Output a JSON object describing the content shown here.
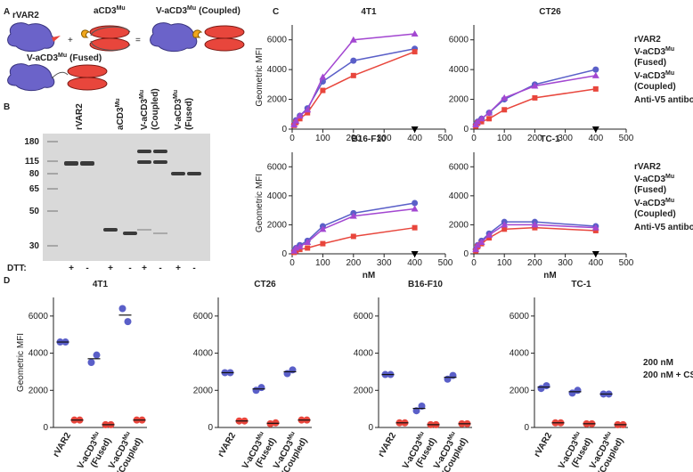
{
  "panels": [
    "A",
    "B",
    "C",
    "D"
  ],
  "diagram": {
    "rvar2": "rVAR2",
    "plus": "+",
    "equals": "=",
    "acd3": {
      "text": "aCD3",
      "sup": "Mu"
    },
    "coupled": {
      "text": "V-aCD3",
      "sup": "Mu",
      "suffix": "(Coupled)"
    },
    "fused": {
      "text": "V-aCD3",
      "sup": "Mu",
      "suffix": "(Fused)"
    }
  },
  "gel": {
    "markers": [
      180,
      115,
      80,
      65,
      50,
      30
    ],
    "lanes": [
      {
        "text": "rVAR2"
      },
      {
        "text": "aCD3",
        "sup": "Mu"
      },
      {
        "text": "V-aCD3",
        "sup": "Mu",
        "line2": "(Coupled)"
      },
      {
        "text": "V-aCD3",
        "sup": "Mu",
        "line2": "(Fused)"
      }
    ],
    "dtt_label": "DTT:",
    "dtt": [
      "+",
      "-",
      "+",
      "-",
      "+",
      "-",
      "+",
      "-"
    ]
  },
  "chart_data": [
    {
      "type": "line",
      "title": "4T1",
      "ylabel": "Geometric MFI",
      "x": [
        6.25,
        12.5,
        25,
        50,
        100,
        200,
        400
      ],
      "xlim": [
        0,
        500
      ],
      "xticks": [
        0,
        100,
        200,
        300,
        400,
        500
      ],
      "ylim": [
        0,
        7000
      ],
      "yticks": [
        0,
        2000,
        4000,
        6000
      ],
      "series": [
        {
          "color": "#5a5fc8",
          "marker": "circle",
          "values": [
            300,
            600,
            900,
            1400,
            3200,
            4600,
            5400
          ]
        },
        {
          "color": "#e8463c",
          "marker": "square",
          "values": [
            250,
            450,
            700,
            1100,
            2600,
            3600,
            5200
          ]
        },
        {
          "color": "#a347d1",
          "marker": "triangle",
          "values": [
            300,
            550,
            900,
            1300,
            3500,
            6000,
            6400
          ]
        },
        {
          "color": "#000000",
          "marker": "triangle-down",
          "values": [
            null,
            null,
            null,
            null,
            null,
            null,
            0
          ]
        }
      ]
    },
    {
      "type": "line",
      "title": "CT26",
      "legend": true,
      "x": [
        6.25,
        12.5,
        25,
        50,
        100,
        200,
        400
      ],
      "xlim": [
        0,
        500
      ],
      "xticks": [
        0,
        100,
        200,
        300,
        400,
        500
      ],
      "ylim": [
        0,
        7000
      ],
      "yticks": [
        0,
        2000,
        4000,
        6000
      ],
      "series": [
        {
          "name": "rVAR2",
          "color": "#5a5fc8",
          "marker": "circle",
          "values": [
            300,
            500,
            700,
            1100,
            2000,
            3000,
            4000
          ]
        },
        {
          "name": "V-aCD3",
          "name_sup": "Mu",
          "name_line2": "(Fused)",
          "color": "#e8463c",
          "marker": "square",
          "values": [
            200,
            400,
            500,
            700,
            1300,
            2100,
            2700
          ]
        },
        {
          "name": "V-aCD3",
          "name_sup": "Mu",
          "name_line2": "(Coupled)",
          "color": "#a347d1",
          "marker": "triangle",
          "values": [
            300,
            500,
            700,
            1100,
            2100,
            2900,
            3600
          ]
        },
        {
          "name": "Anti-V5 antibody",
          "color": "#000000",
          "marker": "triangle-down",
          "values": [
            null,
            null,
            null,
            null,
            null,
            null,
            0
          ]
        }
      ]
    },
    {
      "type": "line",
      "title": "B16-F10",
      "ylabel": "Geometric MFI",
      "xlabel": "nM",
      "x": [
        6.25,
        12.5,
        25,
        50,
        100,
        200,
        400
      ],
      "xlim": [
        0,
        500
      ],
      "xticks": [
        0,
        100,
        200,
        300,
        400,
        500
      ],
      "ylim": [
        0,
        7000
      ],
      "yticks": [
        0,
        2000,
        4000,
        6000
      ],
      "series": [
        {
          "color": "#5a5fc8",
          "marker": "circle",
          "values": [
            200,
            400,
            600,
            900,
            1900,
            2800,
            3500
          ]
        },
        {
          "color": "#e8463c",
          "marker": "square",
          "values": [
            100,
            200,
            300,
            400,
            700,
            1200,
            1800
          ]
        },
        {
          "color": "#a347d1",
          "marker": "triangle",
          "values": [
            200,
            400,
            500,
            800,
            1700,
            2600,
            3100
          ]
        },
        {
          "color": "#000000",
          "marker": "triangle-down",
          "values": [
            null,
            null,
            null,
            null,
            null,
            null,
            0
          ]
        }
      ]
    },
    {
      "type": "line",
      "title": "TC-1",
      "legend": true,
      "xlabel": "nM",
      "x": [
        6.25,
        12.5,
        25,
        50,
        100,
        200,
        400
      ],
      "xlim": [
        0,
        500
      ],
      "xticks": [
        0,
        100,
        200,
        300,
        400,
        500
      ],
      "ylim": [
        0,
        7000
      ],
      "yticks": [
        0,
        2000,
        4000,
        6000
      ],
      "series": [
        {
          "name": "rVAR2",
          "color": "#5a5fc8",
          "marker": "circle",
          "values": [
            300,
            600,
            900,
            1400,
            2200,
            2200,
            1900
          ]
        },
        {
          "name": "V-aCD3",
          "name_sup": "Mu",
          "name_line2": "(Fused)",
          "color": "#e8463c",
          "marker": "square",
          "values": [
            200,
            500,
            700,
            1100,
            1700,
            1800,
            1600
          ]
        },
        {
          "name": "V-aCD3",
          "name_sup": "Mu",
          "name_line2": "(Coupled)",
          "color": "#a347d1",
          "marker": "triangle",
          "values": [
            300,
            600,
            800,
            1300,
            2000,
            2000,
            1800
          ]
        },
        {
          "name": "Anti-V5 antibody",
          "color": "#000000",
          "marker": "triangle-down",
          "values": [
            null,
            null,
            null,
            null,
            null,
            null,
            0
          ]
        }
      ]
    },
    {
      "type": "dot",
      "title": "4T1",
      "ylabel": "Geometric MFI",
      "ylim": [
        0,
        7000
      ],
      "yticks": [
        0,
        2000,
        4000,
        6000
      ],
      "categories": [
        {
          "text": "rVAR2"
        },
        {
          "text": "V-aCD3",
          "sup": "Mu",
          "line2": "(Fused)"
        },
        {
          "text": "V-aCD3",
          "sup": "Mu",
          "line2": "(Coupled)"
        }
      ],
      "series": [
        {
          "color": "#5a5fc8",
          "values": [
            [
              4600,
              4600
            ],
            [
              3500,
              3900
            ],
            [
              6400,
              5700
            ]
          ]
        },
        {
          "color": "#e8463c",
          "values": [
            [
              400,
              400
            ],
            [
              150,
              150
            ],
            [
              400,
              400
            ]
          ]
        }
      ]
    },
    {
      "type": "dot",
      "title": "CT26",
      "ylim": [
        0,
        7000
      ],
      "yticks": [
        0,
        2000,
        4000,
        6000
      ],
      "categories": [
        {
          "text": "rVAR2"
        },
        {
          "text": "V-aCD3",
          "sup": "Mu",
          "line2": "(Fused)"
        },
        {
          "text": "V-aCD3",
          "sup": "Mu",
          "line2": "(Coupled)"
        }
      ],
      "series": [
        {
          "color": "#5a5fc8",
          "values": [
            [
              2950,
              2950
            ],
            [
              2000,
              2150
            ],
            [
              2900,
              3100
            ]
          ]
        },
        {
          "color": "#e8463c",
          "values": [
            [
              350,
              350
            ],
            [
              200,
              250
            ],
            [
              400,
              400
            ]
          ]
        }
      ]
    },
    {
      "type": "dot",
      "title": "B16-F10",
      "ylim": [
        0,
        7000
      ],
      "yticks": [
        0,
        2000,
        4000,
        6000
      ],
      "categories": [
        {
          "text": "rVAR2"
        },
        {
          "text": "V-aCD3",
          "sup": "Mu",
          "line2": "(Fused)"
        },
        {
          "text": "V-aCD3",
          "sup": "Mu",
          "line2": "(Coupled)"
        }
      ],
      "series": [
        {
          "color": "#5a5fc8",
          "values": [
            [
              2850,
              2850
            ],
            [
              900,
              1150
            ],
            [
              2600,
              2800
            ]
          ]
        },
        {
          "color": "#e8463c",
          "values": [
            [
              250,
              250
            ],
            [
              150,
              150
            ],
            [
              200,
              200
            ]
          ]
        }
      ]
    },
    {
      "type": "dot",
      "title": "TC-1",
      "legend": true,
      "ylim": [
        0,
        7000
      ],
      "yticks": [
        0,
        2000,
        4000,
        6000
      ],
      "categories": [
        {
          "text": "rVAR2"
        },
        {
          "text": "V-aCD3",
          "sup": "Mu",
          "line2": "(Fused)"
        },
        {
          "text": "V-aCD3",
          "sup": "Mu",
          "line2": "(Coupled)"
        }
      ],
      "series": [
        {
          "name": "200 nM",
          "color": "#5a5fc8",
          "values": [
            [
              2100,
              2250
            ],
            [
              1850,
              2000
            ],
            [
              1800,
              1800
            ]
          ]
        },
        {
          "name": "200 nM + CSA",
          "color": "#e8463c",
          "values": [
            [
              250,
              250
            ],
            [
              200,
              200
            ],
            [
              150,
              150
            ]
          ]
        }
      ]
    }
  ]
}
